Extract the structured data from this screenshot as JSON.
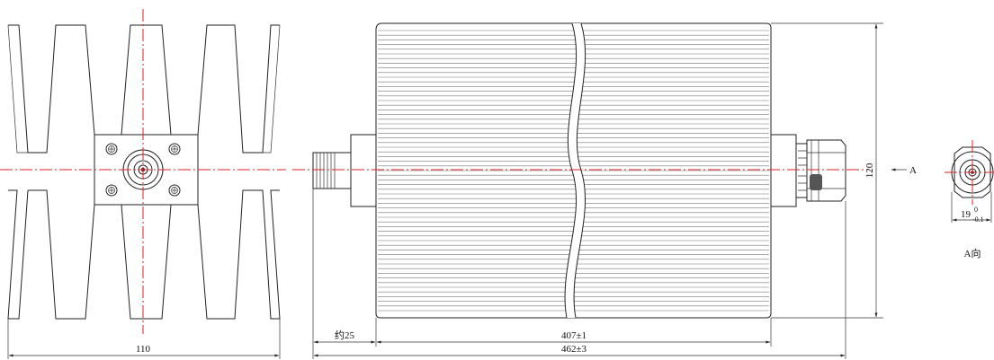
{
  "drawing": {
    "dimensions": {
      "front_width": "110",
      "total_length": "462±3",
      "body_length": "407±1",
      "connector_length": "约25",
      "height": "120",
      "connector_dia": "19",
      "connector_dia_tol_upper": "0",
      "connector_dia_tol_lower": "-0.1"
    },
    "view_arrow_label": "A",
    "view_title": "A向"
  },
  "colors": {
    "line": "#222222",
    "centerline": "#e0202a"
  }
}
